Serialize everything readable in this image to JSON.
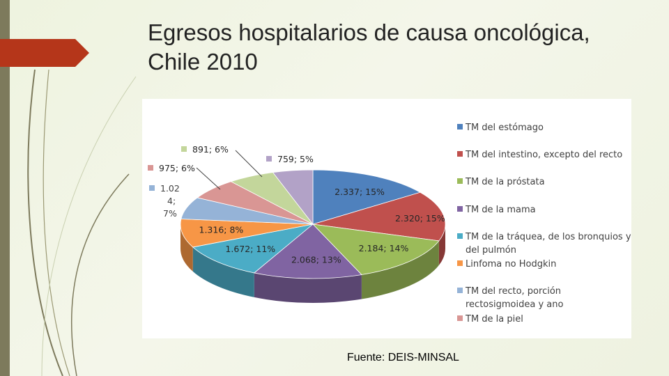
{
  "title": "Egresos hospitalarios de causa oncológica, Chile 2010",
  "source": "Fuente: DEIS-MINSAL",
  "chart_data": {
    "type": "pie",
    "title": "",
    "slices": [
      {
        "label": "TM del estómago",
        "value": 2337,
        "data_label": "2.337; 15%",
        "color": "#4f81bd"
      },
      {
        "label": "TM del intestino, excepto del recto",
        "value": 2320,
        "data_label": "2.320; 15%",
        "color": "#c0504d"
      },
      {
        "label": "TM de la próstata",
        "value": 2184,
        "data_label": "2.184; 14%",
        "color": "#9bbb59"
      },
      {
        "label": "TM de la mama",
        "value": 2068,
        "data_label": "2.068; 13%",
        "color": "#8064a2"
      },
      {
        "label": "TM de la tráquea, de los bronquios y del pulmón",
        "value": 1672,
        "data_label": "1.672; 11%",
        "color": "#4bacc6"
      },
      {
        "label": "Linfoma no Hodgkin",
        "value": 1316,
        "data_label": "1.316; 8%",
        "color": "#f79646"
      },
      {
        "label": "TM del recto, porción rectosigmoidea y ano",
        "value": 1024,
        "data_label": "1.024; 7%",
        "color": "#95b3d7"
      },
      {
        "label": "TM de la piel",
        "value": 975,
        "data_label": "975; 6%",
        "color": "#d99694"
      },
      {
        "label": "",
        "value": 891,
        "data_label": "891; 6%",
        "color": "#c3d69b"
      },
      {
        "label": "",
        "value": 759,
        "data_label": "759; 5%",
        "color": "#b2a2c7"
      }
    ],
    "legend_lines": [
      [
        "TM del estómago"
      ],
      [
        "TM del intestino, excepto del recto"
      ],
      [
        "TM de la próstata"
      ],
      [
        "TM de la mama"
      ],
      [
        "TM de la tráquea, de los bronquios y",
        "del pulmón"
      ],
      [
        "Linfoma no Hodgkin"
      ],
      [
        "TM del recto, porción",
        "rectosigmoidea y ano"
      ],
      [
        "TM de la piel"
      ]
    ],
    "legend_placement": "right"
  }
}
